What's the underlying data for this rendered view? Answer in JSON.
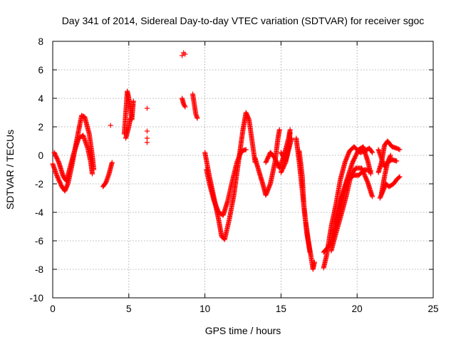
{
  "chart_data": {
    "type": "scatter",
    "title": "Day 341 of 2014, Sidereal Day-to-day VTEC variation (SDTVAR) for receiver sgoc",
    "xlabel": "GPS time / hours",
    "ylabel": "SDTVAR / TECUs",
    "xlim": [
      0,
      25
    ],
    "ylim": [
      -10,
      8
    ],
    "xticks": [
      0,
      5,
      10,
      15,
      20,
      25
    ],
    "xtick_labels": [
      "0",
      "5",
      "10",
      "15",
      "20",
      "25"
    ],
    "yticks": [
      -10,
      -8,
      -6,
      -4,
      -2,
      0,
      2,
      4,
      6,
      8
    ],
    "ytick_labels": [
      "-10",
      "-8",
      "-6",
      "-4",
      "-2",
      "0",
      "2",
      "4",
      "6",
      "8"
    ],
    "grid": true,
    "marker": "plus",
    "color": "#ff0000",
    "series": [
      {
        "name": "sgoc",
        "segments": [
          [
            [
              0.0,
              -0.6
            ],
            [
              0.3,
              -1.5
            ],
            [
              0.6,
              -2.2
            ],
            [
              0.8,
              -2.5
            ],
            [
              1.0,
              -2.0
            ],
            [
              1.3,
              -0.5
            ],
            [
              1.6,
              1.2
            ],
            [
              1.9,
              2.8
            ],
            [
              2.1,
              2.7
            ],
            [
              2.4,
              1.5
            ],
            [
              2.6,
              0.0
            ],
            [
              2.7,
              -1.0
            ]
          ],
          [
            [
              0.1,
              0.2
            ],
            [
              0.4,
              -0.5
            ],
            [
              0.7,
              -1.5
            ],
            [
              0.9,
              -1.8
            ],
            [
              1.1,
              -1.0
            ],
            [
              1.4,
              0.2
            ],
            [
              1.7,
              1.2
            ],
            [
              2.0,
              1.4
            ],
            [
              2.3,
              0.5
            ],
            [
              2.5,
              -0.5
            ],
            [
              2.6,
              -1.3
            ]
          ],
          [
            [
              3.3,
              -2.2
            ],
            [
              3.5,
              -1.9
            ],
            [
              3.7,
              -1.3
            ],
            [
              3.9,
              -0.5
            ]
          ],
          [
            [
              4.7,
              1.5
            ],
            [
              4.8,
              3.0
            ],
            [
              4.9,
              4.5
            ],
            [
              5.0,
              4.0
            ],
            [
              5.1,
              3.2
            ],
            [
              5.2,
              2.5
            ],
            [
              5.3,
              3.8
            ]
          ],
          [
            [
              4.8,
              1.2
            ],
            [
              5.0,
              2.0
            ],
            [
              5.1,
              2.6
            ]
          ],
          [
            [
              8.5,
              4.0
            ],
            [
              8.6,
              3.6
            ],
            [
              8.7,
              3.4
            ]
          ],
          [
            [
              9.2,
              4.3
            ],
            [
              9.3,
              3.6
            ],
            [
              9.4,
              2.9
            ],
            [
              9.5,
              2.6
            ]
          ],
          [
            [
              10.0,
              0.2
            ],
            [
              10.3,
              -1.5
            ],
            [
              10.6,
              -3.0
            ],
            [
              10.9,
              -4.5
            ],
            [
              11.1,
              -5.7
            ],
            [
              11.3,
              -5.9
            ],
            [
              11.6,
              -4.5
            ],
            [
              11.9,
              -2.8
            ],
            [
              12.2,
              -0.5
            ],
            [
              12.5,
              1.8
            ],
            [
              12.7,
              3.0
            ],
            [
              12.9,
              2.5
            ],
            [
              13.1,
              1.0
            ],
            [
              13.3,
              -0.5
            ]
          ],
          [
            [
              10.1,
              -1.0
            ],
            [
              10.3,
              -2.0
            ],
            [
              10.6,
              -3.2
            ],
            [
              10.9,
              -4.0
            ],
            [
              11.2,
              -4.2
            ],
            [
              11.5,
              -3.2
            ],
            [
              11.8,
              -1.8
            ],
            [
              12.1,
              -0.5
            ],
            [
              12.4,
              0.3
            ],
            [
              12.7,
              0.4
            ]
          ],
          [
            [
              13.3,
              -0.2
            ],
            [
              13.6,
              -1.3
            ],
            [
              13.8,
              -2.0
            ],
            [
              14.0,
              -2.8
            ],
            [
              14.3,
              -2.0
            ],
            [
              14.6,
              -0.5
            ],
            [
              14.8,
              1.2
            ],
            [
              14.9,
              1.8
            ]
          ],
          [
            [
              14.0,
              -0.5
            ],
            [
              14.3,
              0.2
            ],
            [
              14.6,
              -0.2
            ],
            [
              14.9,
              -0.9
            ],
            [
              15.1,
              -0.3
            ],
            [
              15.3,
              0.4
            ],
            [
              15.5,
              1.2
            ],
            [
              15.6,
              1.8
            ]
          ],
          [
            [
              15.0,
              0.2
            ],
            [
              15.3,
              -0.4
            ],
            [
              15.5,
              0.5
            ],
            [
              15.6,
              1.6
            ]
          ],
          [
            [
              15.0,
              -1.2
            ],
            [
              15.3,
              -0.5
            ],
            [
              15.5,
              0.4
            ],
            [
              15.7,
              1.2
            ]
          ],
          [
            [
              16.0,
              1.2
            ],
            [
              16.2,
              -0.5
            ],
            [
              16.4,
              -2.5
            ],
            [
              16.6,
              -4.5
            ],
            [
              16.8,
              -6.0
            ],
            [
              17.0,
              -7.3
            ],
            [
              17.1,
              -8.0
            ],
            [
              17.2,
              -7.5
            ]
          ],
          [
            [
              16.2,
              0.3
            ],
            [
              16.4,
              -1.5
            ],
            [
              16.5,
              -3.5
            ],
            [
              16.7,
              -5.5
            ],
            [
              16.9,
              -6.8
            ]
          ],
          [
            [
              17.8,
              -7.9
            ],
            [
              18.0,
              -7.0
            ],
            [
              18.3,
              -5.0
            ],
            [
              18.6,
              -3.5
            ],
            [
              18.9,
              -1.7
            ],
            [
              19.2,
              -0.5
            ],
            [
              19.5,
              0.3
            ],
            [
              19.8,
              0.6
            ],
            [
              20.2,
              0.2
            ],
            [
              20.5,
              0.3
            ],
            [
              20.8,
              0.5
            ],
            [
              21.0,
              0.2
            ]
          ],
          [
            [
              17.8,
              -6.8
            ],
            [
              18.2,
              -6.3
            ],
            [
              18.6,
              -4.8
            ],
            [
              19.0,
              -3.0
            ],
            [
              19.4,
              -1.7
            ],
            [
              19.8,
              -1.4
            ],
            [
              20.1,
              -1.4
            ],
            [
              20.5,
              -1.0
            ],
            [
              20.9,
              -1.1
            ]
          ],
          [
            [
              18.5,
              -4.7
            ],
            [
              18.9,
              -3.2
            ],
            [
              19.3,
              -1.8
            ],
            [
              19.7,
              -0.5
            ],
            [
              20.1,
              0.4
            ],
            [
              20.4,
              0.6
            ],
            [
              20.7,
              -0.4
            ],
            [
              20.9,
              -1.3
            ]
          ],
          [
            [
              18.3,
              -6.7
            ],
            [
              18.6,
              -5.5
            ],
            [
              19.0,
              -4.0
            ],
            [
              19.3,
              -2.8
            ],
            [
              19.6,
              -1.4
            ],
            [
              19.9,
              -0.9
            ],
            [
              20.3,
              -0.9
            ],
            [
              20.7,
              -1.9
            ],
            [
              21.0,
              -2.9
            ]
          ],
          [
            [
              21.4,
              -1.2
            ],
            [
              21.6,
              -0.5
            ],
            [
              21.8,
              0.7
            ],
            [
              22.0,
              1.0
            ],
            [
              22.3,
              0.6
            ],
            [
              22.6,
              0.5
            ],
            [
              22.8,
              0.4
            ]
          ],
          [
            [
              21.4,
              0.4
            ],
            [
              21.6,
              -0.2
            ],
            [
              21.8,
              -0.8
            ],
            [
              22.0,
              -0.5
            ],
            [
              22.3,
              -0.3
            ],
            [
              22.6,
              -0.4
            ]
          ],
          [
            [
              21.5,
              -3.0
            ],
            [
              21.7,
              -2.5
            ],
            [
              21.9,
              -2.0
            ],
            [
              22.1,
              -2.2
            ],
            [
              22.4,
              -2.0
            ],
            [
              22.6,
              -1.7
            ],
            [
              22.8,
              -1.5
            ]
          ],
          [
            [
              21.6,
              -2.7
            ],
            [
              21.8,
              -1.5
            ],
            [
              22.0,
              -0.5
            ],
            [
              22.2,
              0.0
            ]
          ]
        ],
        "points": [
          [
            3.8,
            2.1
          ],
          [
            6.2,
            3.3
          ],
          [
            6.2,
            1.7
          ],
          [
            6.2,
            1.2
          ],
          [
            6.2,
            0.9
          ],
          [
            8.6,
            7.2
          ],
          [
            8.7,
            7.1
          ],
          [
            8.5,
            7.0
          ]
        ]
      }
    ]
  }
}
